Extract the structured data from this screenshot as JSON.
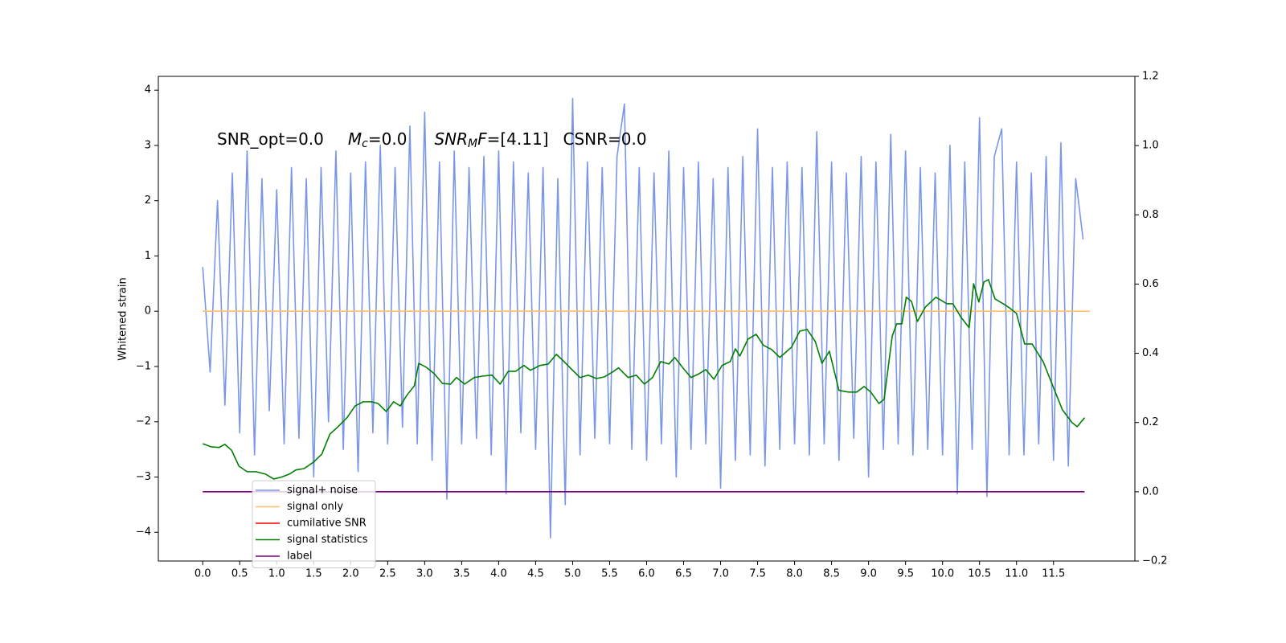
{
  "chart_data": {
    "type": "line",
    "y_label": "Whitened strain",
    "annotation": [
      {
        "text": "SNR_opt=0.0"
      },
      {
        "text": "M",
        "style": "italic"
      },
      {
        "text": "c",
        "style": "italic-sub"
      },
      {
        "text": "=0.0"
      },
      {
        "text": "SNR",
        "style": "italic"
      },
      {
        "text": "M",
        "style": "italic-sub"
      },
      {
        "text": "F",
        "style": "italic"
      },
      {
        "text": "=[4.11]"
      },
      {
        "text": "CSNR=0.0"
      }
    ],
    "xlim": [
      -0.6,
      12.6
    ],
    "ylim": [
      -4.52,
      4.25
    ],
    "y2lim": [
      -0.2,
      1.2
    ],
    "xticks": [
      {
        "value": 0,
        "label": "0.0"
      },
      0.5,
      {
        "value": 1,
        "label": "1.0"
      },
      1.5,
      {
        "value": 2,
        "label": "2.0"
      },
      2.5,
      {
        "value": 3,
        "label": "3.0"
      },
      3.5,
      {
        "value": 4,
        "label": "4.0"
      },
      4.5,
      {
        "value": 5,
        "label": "5.0"
      },
      5.5,
      {
        "value": 6,
        "label": "6.0"
      },
      6.5,
      {
        "value": 7,
        "label": "7.0"
      },
      7.5,
      {
        "value": 8,
        "label": "8.0"
      },
      8.5,
      {
        "value": 9,
        "label": "9.0"
      },
      9.5,
      {
        "value": 10,
        "label": "10.0"
      },
      10.5,
      {
        "value": 11,
        "label": "11.0"
      },
      11.5
    ],
    "yticks": [
      {
        "value": -4,
        "label": "−4"
      },
      {
        "value": -3,
        "label": "−3"
      },
      {
        "value": -2,
        "label": "−2"
      },
      {
        "value": -1,
        "label": "−1"
      },
      0,
      1,
      2,
      3,
      4
    ],
    "y2ticks": [
      {
        "value": -0.2,
        "label": "−0.2"
      },
      {
        "value": 0,
        "label": "0.0"
      },
      0.2,
      0.4,
      0.6,
      0.8,
      {
        "value": 1,
        "label": "1.0"
      },
      1.2
    ],
    "grid": false,
    "legend_loc": "lower left",
    "series": [
      {
        "name": "signal+ noise",
        "color": "#7b96e8",
        "x": [
          0.0,
          0.1,
          0.2,
          0.3,
          0.4,
          0.5,
          0.6,
          0.7,
          0.8,
          0.9,
          1.0,
          1.1,
          1.2,
          1.3,
          1.4,
          1.5,
          1.6,
          1.7,
          1.8,
          1.9,
          2.0,
          2.1,
          2.2,
          2.3,
          2.4,
          2.5,
          2.6,
          2.7,
          2.8,
          2.9,
          3.0,
          3.1,
          3.2,
          3.3,
          3.4,
          3.5,
          3.6,
          3.7,
          3.8,
          3.9,
          4.0,
          4.1,
          4.2,
          4.3,
          4.4,
          4.5,
          4.6,
          4.7,
          4.8,
          4.9,
          5.0,
          5.1,
          5.2,
          5.3,
          5.4,
          5.5,
          5.6,
          5.7,
          5.8,
          5.9,
          6.0,
          6.1,
          6.2,
          6.3,
          6.4,
          6.5,
          6.6,
          6.7,
          6.8,
          6.9,
          7.0,
          7.1,
          7.2,
          7.3,
          7.4,
          7.5,
          7.6,
          7.7,
          7.8,
          7.9,
          8.0,
          8.1,
          8.2,
          8.3,
          8.4,
          8.5,
          8.6,
          8.7,
          8.8,
          8.9,
          9.0,
          9.1,
          9.2,
          9.3,
          9.4,
          9.5,
          9.6,
          9.7,
          9.8,
          9.9,
          10.0,
          10.1,
          10.2,
          10.3,
          10.4,
          10.5,
          10.6,
          10.7,
          10.8,
          10.9,
          11.0,
          11.1,
          11.2,
          11.3,
          11.4,
          11.5,
          11.6,
          11.7,
          11.8,
          11.9
        ],
        "values": [
          0.8,
          -1.1,
          2.0,
          -1.7,
          2.5,
          -2.2,
          2.9,
          -2.6,
          2.4,
          -1.8,
          2.2,
          -2.4,
          2.6,
          -2.3,
          2.4,
          -3.0,
          2.6,
          -2.0,
          2.9,
          -2.5,
          2.5,
          -2.9,
          2.7,
          -2.2,
          3.0,
          -2.4,
          2.6,
          -2.1,
          3.35,
          -2.4,
          3.6,
          -2.7,
          2.7,
          -3.4,
          2.9,
          -2.4,
          2.6,
          -2.3,
          2.8,
          -2.6,
          2.9,
          -3.3,
          2.7,
          -2.2,
          2.5,
          -2.5,
          2.6,
          -4.1,
          2.4,
          -3.5,
          3.85,
          -2.6,
          2.7,
          -2.3,
          2.6,
          -2.4,
          2.8,
          3.75,
          -2.5,
          2.6,
          -2.7,
          2.5,
          -2.4,
          2.9,
          -3.0,
          2.6,
          -2.5,
          2.7,
          -2.4,
          2.4,
          -3.2,
          2.6,
          -2.7,
          2.8,
          -2.6,
          3.3,
          -2.8,
          2.6,
          -2.5,
          2.7,
          -2.4,
          2.6,
          -2.6,
          3.25,
          -2.4,
          2.7,
          -2.7,
          2.5,
          -2.3,
          2.8,
          -3.0,
          2.7,
          -2.5,
          3.2,
          -2.4,
          2.9,
          -2.6,
          2.6,
          -2.5,
          2.5,
          -2.6,
          3.0,
          -3.3,
          2.7,
          -2.5,
          3.5,
          -3.35,
          2.8,
          3.3,
          -2.6,
          2.7,
          -2.6,
          2.5,
          -2.4,
          2.8,
          -2.7,
          3.05,
          -2.8,
          2.4,
          1.3
        ]
      },
      {
        "name": "signal only",
        "color": "#ffbf69",
        "x": [
          0,
          11.99
        ],
        "values": [
          0,
          0
        ]
      },
      {
        "name": "cumilative SNR",
        "color": "#ff0000"
      },
      {
        "name": "signal statistics",
        "color": "#007f00",
        "axis": "y2",
        "x": [
          0,
          0.11,
          0.22,
          0.3,
          0.39,
          0.49,
          0.6,
          0.72,
          0.85,
          0.96,
          1.06,
          1.17,
          1.26,
          1.37,
          1.5,
          1.61,
          1.72,
          1.82,
          1.95,
          2.06,
          2.17,
          2.28,
          2.37,
          2.48,
          2.58,
          2.67,
          2.76,
          2.86,
          2.92,
          3.02,
          3.13,
          3.24,
          3.35,
          3.43,
          3.54,
          3.67,
          3.78,
          3.91,
          4.02,
          4.13,
          4.23,
          4.34,
          4.43,
          4.56,
          4.67,
          4.78,
          4.86,
          4.99,
          5.1,
          5.21,
          5.32,
          5.43,
          5.54,
          5.62,
          5.75,
          5.86,
          5.97,
          6.08,
          6.19,
          6.3,
          6.38,
          6.49,
          6.6,
          6.71,
          6.8,
          6.91,
          7.02,
          7.13,
          7.2,
          7.26,
          7.37,
          7.48,
          7.58,
          7.69,
          7.8,
          7.86,
          7.96,
          8.07,
          8.17,
          8.28,
          8.37,
          8.47,
          8.6,
          8.73,
          8.84,
          8.94,
          9.03,
          9.14,
          9.21,
          9.32,
          9.38,
          9.45,
          9.51,
          9.58,
          9.66,
          9.77,
          9.91,
          10.06,
          10.14,
          10.25,
          10.36,
          10.42,
          10.49,
          10.56,
          10.62,
          10.71,
          10.82,
          10.9,
          11.0,
          11.11,
          11.21,
          11.36,
          11.49,
          11.62,
          11.75,
          11.82,
          11.92
        ],
        "values": [
          0.139,
          0.13,
          0.128,
          0.137,
          0.12,
          0.074,
          0.058,
          0.058,
          0.051,
          0.037,
          0.042,
          0.051,
          0.063,
          0.067,
          0.086,
          0.109,
          0.167,
          0.186,
          0.214,
          0.248,
          0.26,
          0.26,
          0.255,
          0.232,
          0.26,
          0.248,
          0.279,
          0.306,
          0.371,
          0.36,
          0.341,
          0.313,
          0.311,
          0.33,
          0.311,
          0.33,
          0.334,
          0.337,
          0.311,
          0.348,
          0.348,
          0.365,
          0.351,
          0.365,
          0.369,
          0.397,
          0.381,
          0.353,
          0.33,
          0.337,
          0.327,
          0.332,
          0.346,
          0.358,
          0.33,
          0.337,
          0.311,
          0.33,
          0.376,
          0.369,
          0.388,
          0.358,
          0.33,
          0.341,
          0.353,
          0.325,
          0.365,
          0.376,
          0.413,
          0.392,
          0.441,
          0.455,
          0.423,
          0.411,
          0.388,
          0.399,
          0.418,
          0.464,
          0.469,
          0.434,
          0.371,
          0.406,
          0.293,
          0.288,
          0.288,
          0.304,
          0.288,
          0.255,
          0.267,
          0.45,
          0.485,
          0.485,
          0.562,
          0.55,
          0.492,
          0.534,
          0.562,
          0.543,
          0.543,
          0.504,
          0.474,
          0.601,
          0.548,
          0.606,
          0.613,
          0.557,
          0.543,
          0.532,
          0.515,
          0.427,
          0.427,
          0.376,
          0.306,
          0.237,
          0.2,
          0.188,
          0.214
        ]
      },
      {
        "name": "label",
        "color": "#800080",
        "axis": "y2",
        "x": [
          0,
          11.92
        ],
        "values": [
          0,
          0
        ]
      }
    ]
  }
}
